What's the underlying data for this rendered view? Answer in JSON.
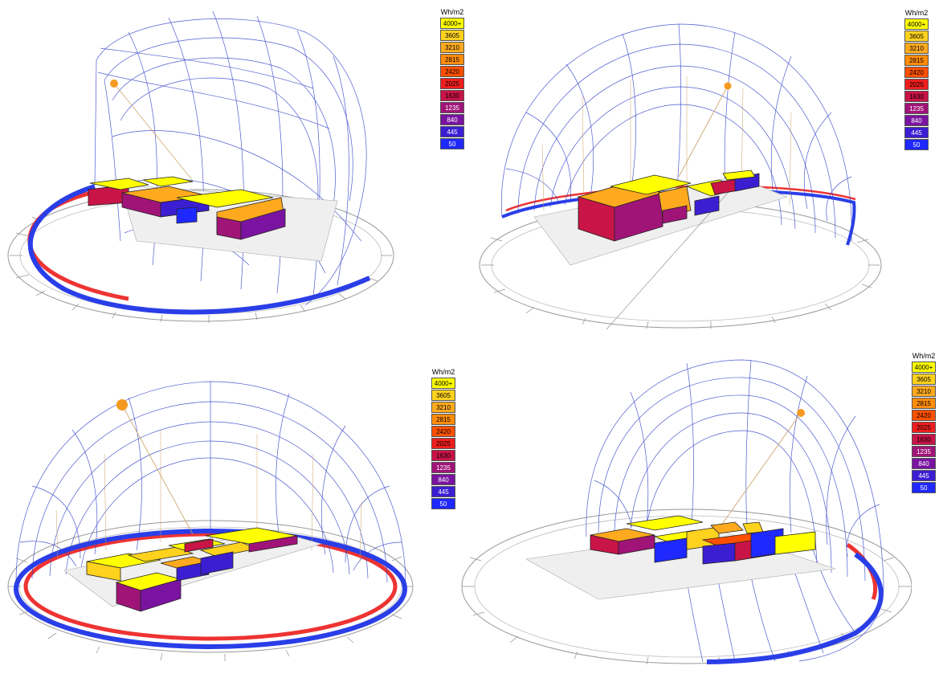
{
  "legend": {
    "title": "Wh/m2",
    "items": [
      {
        "label": "4000+",
        "color": "#ffff00"
      },
      {
        "label": "3605",
        "color": "#ffd21e"
      },
      {
        "label": "3210",
        "color": "#ffaa1e"
      },
      {
        "label": "2815",
        "color": "#ff8c0a"
      },
      {
        "label": "2420",
        "color": "#ff5000"
      },
      {
        "label": "2025",
        "color": "#ee1e1e"
      },
      {
        "label": "1630",
        "color": "#c81446"
      },
      {
        "label": "1235",
        "color": "#a01478"
      },
      {
        "label": "840",
        "color": "#7a14a0"
      },
      {
        "label": "445",
        "color": "#3c1ed2"
      },
      {
        "label": "50",
        "color": "#1e28ff"
      }
    ]
  },
  "panels": [
    {
      "id": "top-left"
    },
    {
      "id": "top-right"
    },
    {
      "id": "bottom-left"
    },
    {
      "id": "bottom-right"
    }
  ]
}
